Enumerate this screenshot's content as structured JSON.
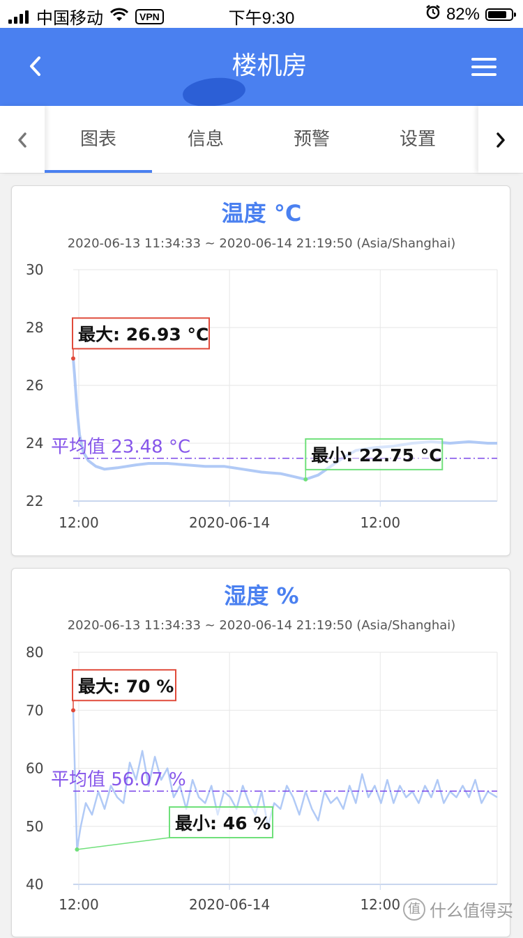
{
  "status_bar": {
    "carrier": "中国移动",
    "vpn": "VPN",
    "time": "下午9:30",
    "battery": "82%",
    "battery_level": 0.82
  },
  "navbar": {
    "back_icon": "chevron-left-icon",
    "title_visible": "楼机房",
    "menu_icon": "hamburger-menu-icon"
  },
  "tabs": {
    "items": [
      {
        "label": "图表",
        "active": true
      },
      {
        "label": "信息",
        "active": false
      },
      {
        "label": "预警",
        "active": false
      },
      {
        "label": "设置",
        "active": false
      }
    ],
    "prev_icon": "chevron-left-icon",
    "next_icon": "chevron-right-icon"
  },
  "colors": {
    "accent": "#4a80f0",
    "line": "#a8c4f5",
    "avg": "#7a44e8",
    "max": "#e04a3a",
    "min": "#6fe07a"
  },
  "chart_data": [
    {
      "type": "line",
      "title": "温度 °C",
      "subtitle": "2020-06-13 11:34:33 ~ 2020-06-14 21:19:50 (Asia/Shanghai)",
      "ylim": [
        22,
        30
      ],
      "yticks": [
        22,
        24,
        26,
        28,
        30
      ],
      "xticks": [
        {
          "label": "12:00",
          "t": 0.44
        },
        {
          "label": "2020-06-14",
          "t": 12.44
        },
        {
          "label": "12:00",
          "t": 24.44
        }
      ],
      "xlim": [
        0,
        33.75
      ],
      "grid": true,
      "series": [
        {
          "x": [
            0,
            0.1,
            0.3,
            0.5,
            0.8,
            1.2,
            1.8,
            2.5,
            3.5,
            5,
            6,
            7.5,
            9,
            10.5,
            12,
            13.5,
            15,
            16.5,
            17.5,
            18.5,
            19.5,
            20.5,
            21.5,
            22.5,
            24,
            25.5,
            27,
            28.5,
            30,
            31.5,
            33,
            33.75
          ],
          "y": [
            26.93,
            26.4,
            25.2,
            24.3,
            23.7,
            23.4,
            23.2,
            23.1,
            23.15,
            23.25,
            23.3,
            23.3,
            23.25,
            23.2,
            23.2,
            23.1,
            23.0,
            22.95,
            22.85,
            22.75,
            22.9,
            23.2,
            23.5,
            23.75,
            23.85,
            23.9,
            24.0,
            24.05,
            24.0,
            24.05,
            24.0,
            24.0
          ]
        }
      ],
      "markers": {
        "max": {
          "label": "最大: 26.93 °C",
          "x": 0,
          "y": 26.93
        },
        "min": {
          "label": "最小: 22.75 °C",
          "x": 18.5,
          "y": 22.75
        },
        "avg": {
          "label": "平均值 23.48 °C",
          "y": 23.48
        }
      }
    },
    {
      "type": "line",
      "title": "湿度 %",
      "subtitle": "2020-06-13 11:34:33 ~ 2020-06-14 21:19:50 (Asia/Shanghai)",
      "ylim": [
        40,
        80
      ],
      "yticks": [
        40,
        50,
        60,
        70,
        80
      ],
      "xticks": [
        {
          "label": "12:00",
          "t": 0.44
        },
        {
          "label": "2020-06-14",
          "t": 12.44
        },
        {
          "label": "12:00",
          "t": 24.44
        }
      ],
      "xlim": [
        0,
        33.75
      ],
      "grid": true,
      "series": [
        {
          "x": [
            0,
            0.1,
            0.3,
            0.6,
            1,
            1.5,
            2,
            2.5,
            3,
            3.5,
            4,
            4.5,
            5,
            5.5,
            6,
            6.5,
            7,
            7.5,
            8,
            8.5,
            9,
            9.5,
            10,
            10.5,
            11,
            11.5,
            12,
            12.5,
            13,
            13.5,
            14,
            14.5,
            15,
            15.5,
            16,
            16.5,
            17,
            17.5,
            18,
            18.5,
            19,
            19.5,
            20,
            20.5,
            21,
            21.5,
            22,
            22.5,
            23,
            23.5,
            24,
            24.5,
            25,
            25.5,
            26,
            26.5,
            27,
            27.5,
            28,
            28.5,
            29,
            29.5,
            30,
            30.5,
            31,
            31.5,
            32,
            32.5,
            33,
            33.75
          ],
          "y": [
            70,
            62,
            46,
            50,
            54,
            52,
            56,
            53,
            57,
            55,
            54,
            61,
            58,
            63,
            57,
            62,
            58,
            60,
            55,
            57,
            53,
            58,
            55,
            54,
            57,
            52,
            56,
            55,
            53,
            57,
            54,
            52,
            56,
            50,
            54,
            53,
            57,
            55,
            52,
            56,
            53,
            51,
            56,
            54,
            55,
            53,
            57,
            54,
            59,
            55,
            57,
            54,
            58,
            54,
            57,
            55,
            56,
            54,
            57,
            55,
            58,
            54,
            56,
            55,
            57,
            55,
            58,
            54,
            56,
            55
          ]
        }
      ],
      "markers": {
        "max": {
          "label": "最大: 70 %",
          "x": 0,
          "y": 70
        },
        "min": {
          "label": "最小: 46 %",
          "x": 0.3,
          "y": 46
        },
        "avg": {
          "label": "平均值 56.07 %",
          "y": 56.07
        }
      }
    }
  ],
  "watermark": {
    "icon": "zhi-badge-icon",
    "badge": "值",
    "text": "什么值得买"
  }
}
